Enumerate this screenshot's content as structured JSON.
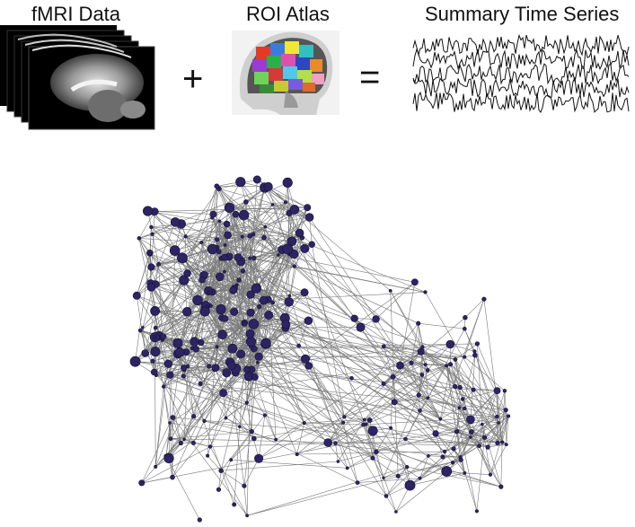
{
  "header": {
    "fmri_label": "fMRI Data",
    "atlas_label": "ROI Atlas",
    "series_label": "Summary Time Series",
    "plus_sign": "+",
    "equals_sign": "="
  },
  "colors": {
    "node_fill": "#2d2463",
    "node_stroke": "#141036",
    "edge": "#7a7a7a",
    "trace": "#111111"
  },
  "network": {
    "hub_region": "left lobe dense cluster",
    "node_count_approx": 300
  }
}
